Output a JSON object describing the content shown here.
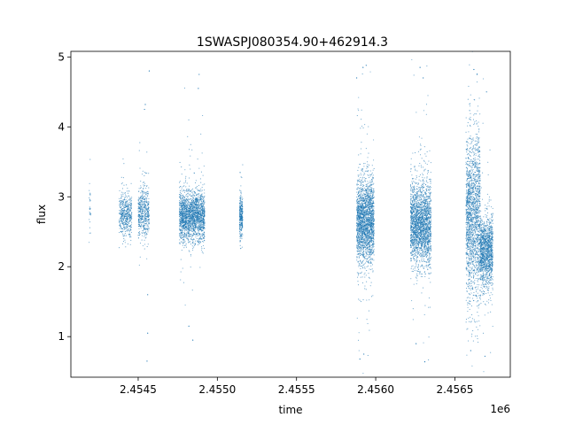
{
  "chart_data": {
    "type": "scatter",
    "title": "1SWASPJ080354.90+462914.3",
    "xlabel": "time",
    "ylabel": "flux",
    "x_offset_label": "1e6",
    "xlim": [
      2454075,
      2456850
    ],
    "ylim": [
      0.42,
      5.08
    ],
    "x_ticks": [
      2454500,
      2455000,
      2455500,
      2456000,
      2456500
    ],
    "x_tick_labels": [
      "2.4545",
      "2.4550",
      "2.4555",
      "2.4560",
      "2.4565"
    ],
    "y_ticks": [
      1,
      2,
      3,
      4,
      5
    ],
    "y_tick_labels": [
      "1",
      "2",
      "3",
      "4",
      "5"
    ],
    "grid": false,
    "legend": "none",
    "series": [
      {
        "color": "#1f77b4",
        "clusters": [
          {
            "x_range": [
              2454190,
              2454200
            ],
            "y_center": 2.9,
            "y_spread": 0.2,
            "count": 30
          },
          {
            "x_range": [
              2454380,
              2454460
            ],
            "y_center": 2.75,
            "y_spread": 0.15,
            "count": 500
          },
          {
            "x_range": [
              2454500,
              2454570
            ],
            "y_center": 2.78,
            "y_spread": 0.18,
            "count": 500
          },
          {
            "x_range": [
              2454760,
              2454920
            ],
            "y_center": 2.72,
            "y_spread": 0.18,
            "count": 2000
          },
          {
            "x_range": [
              2455140,
              2455160
            ],
            "y_center": 2.72,
            "y_spread": 0.15,
            "count": 300
          },
          {
            "x_range": [
              2455880,
              2455990
            ],
            "y_center": 2.65,
            "y_spread": 0.3,
            "count": 2200
          },
          {
            "x_range": [
              2456220,
              2456350
            ],
            "y_center": 2.62,
            "y_spread": 0.3,
            "count": 2200
          },
          {
            "x_range": [
              2456570,
              2456660
            ],
            "y_center": 2.7,
            "y_spread": 0.6,
            "count": 1800
          },
          {
            "x_range": [
              2456660,
              2456740
            ],
            "y_center": 2.2,
            "y_spread": 0.25,
            "count": 1300
          }
        ],
        "outliers": [
          [
            2454570,
            4.8
          ],
          [
            2454545,
            4.32
          ],
          [
            2454540,
            4.25
          ],
          [
            2454560,
            1.05
          ],
          [
            2454556,
            0.65
          ],
          [
            2454560,
            1.6
          ],
          [
            2454880,
            4.55
          ],
          [
            2454885,
            4.75
          ],
          [
            2454820,
            1.15
          ],
          [
            2454845,
            0.95
          ],
          [
            2455920,
            4.85
          ],
          [
            2455940,
            4.88
          ],
          [
            2455880,
            4.7
          ],
          [
            2455900,
            0.68
          ],
          [
            2455925,
            0.75
          ],
          [
            2456280,
            4.85
          ],
          [
            2456300,
            4.7
          ],
          [
            2456310,
            0.64
          ],
          [
            2456255,
            0.9
          ],
          [
            2456620,
            4.82
          ],
          [
            2456640,
            4.75
          ],
          [
            2456600,
            0.8
          ],
          [
            2456690,
            0.72
          ],
          [
            2456700,
            4.5
          ]
        ]
      }
    ]
  }
}
